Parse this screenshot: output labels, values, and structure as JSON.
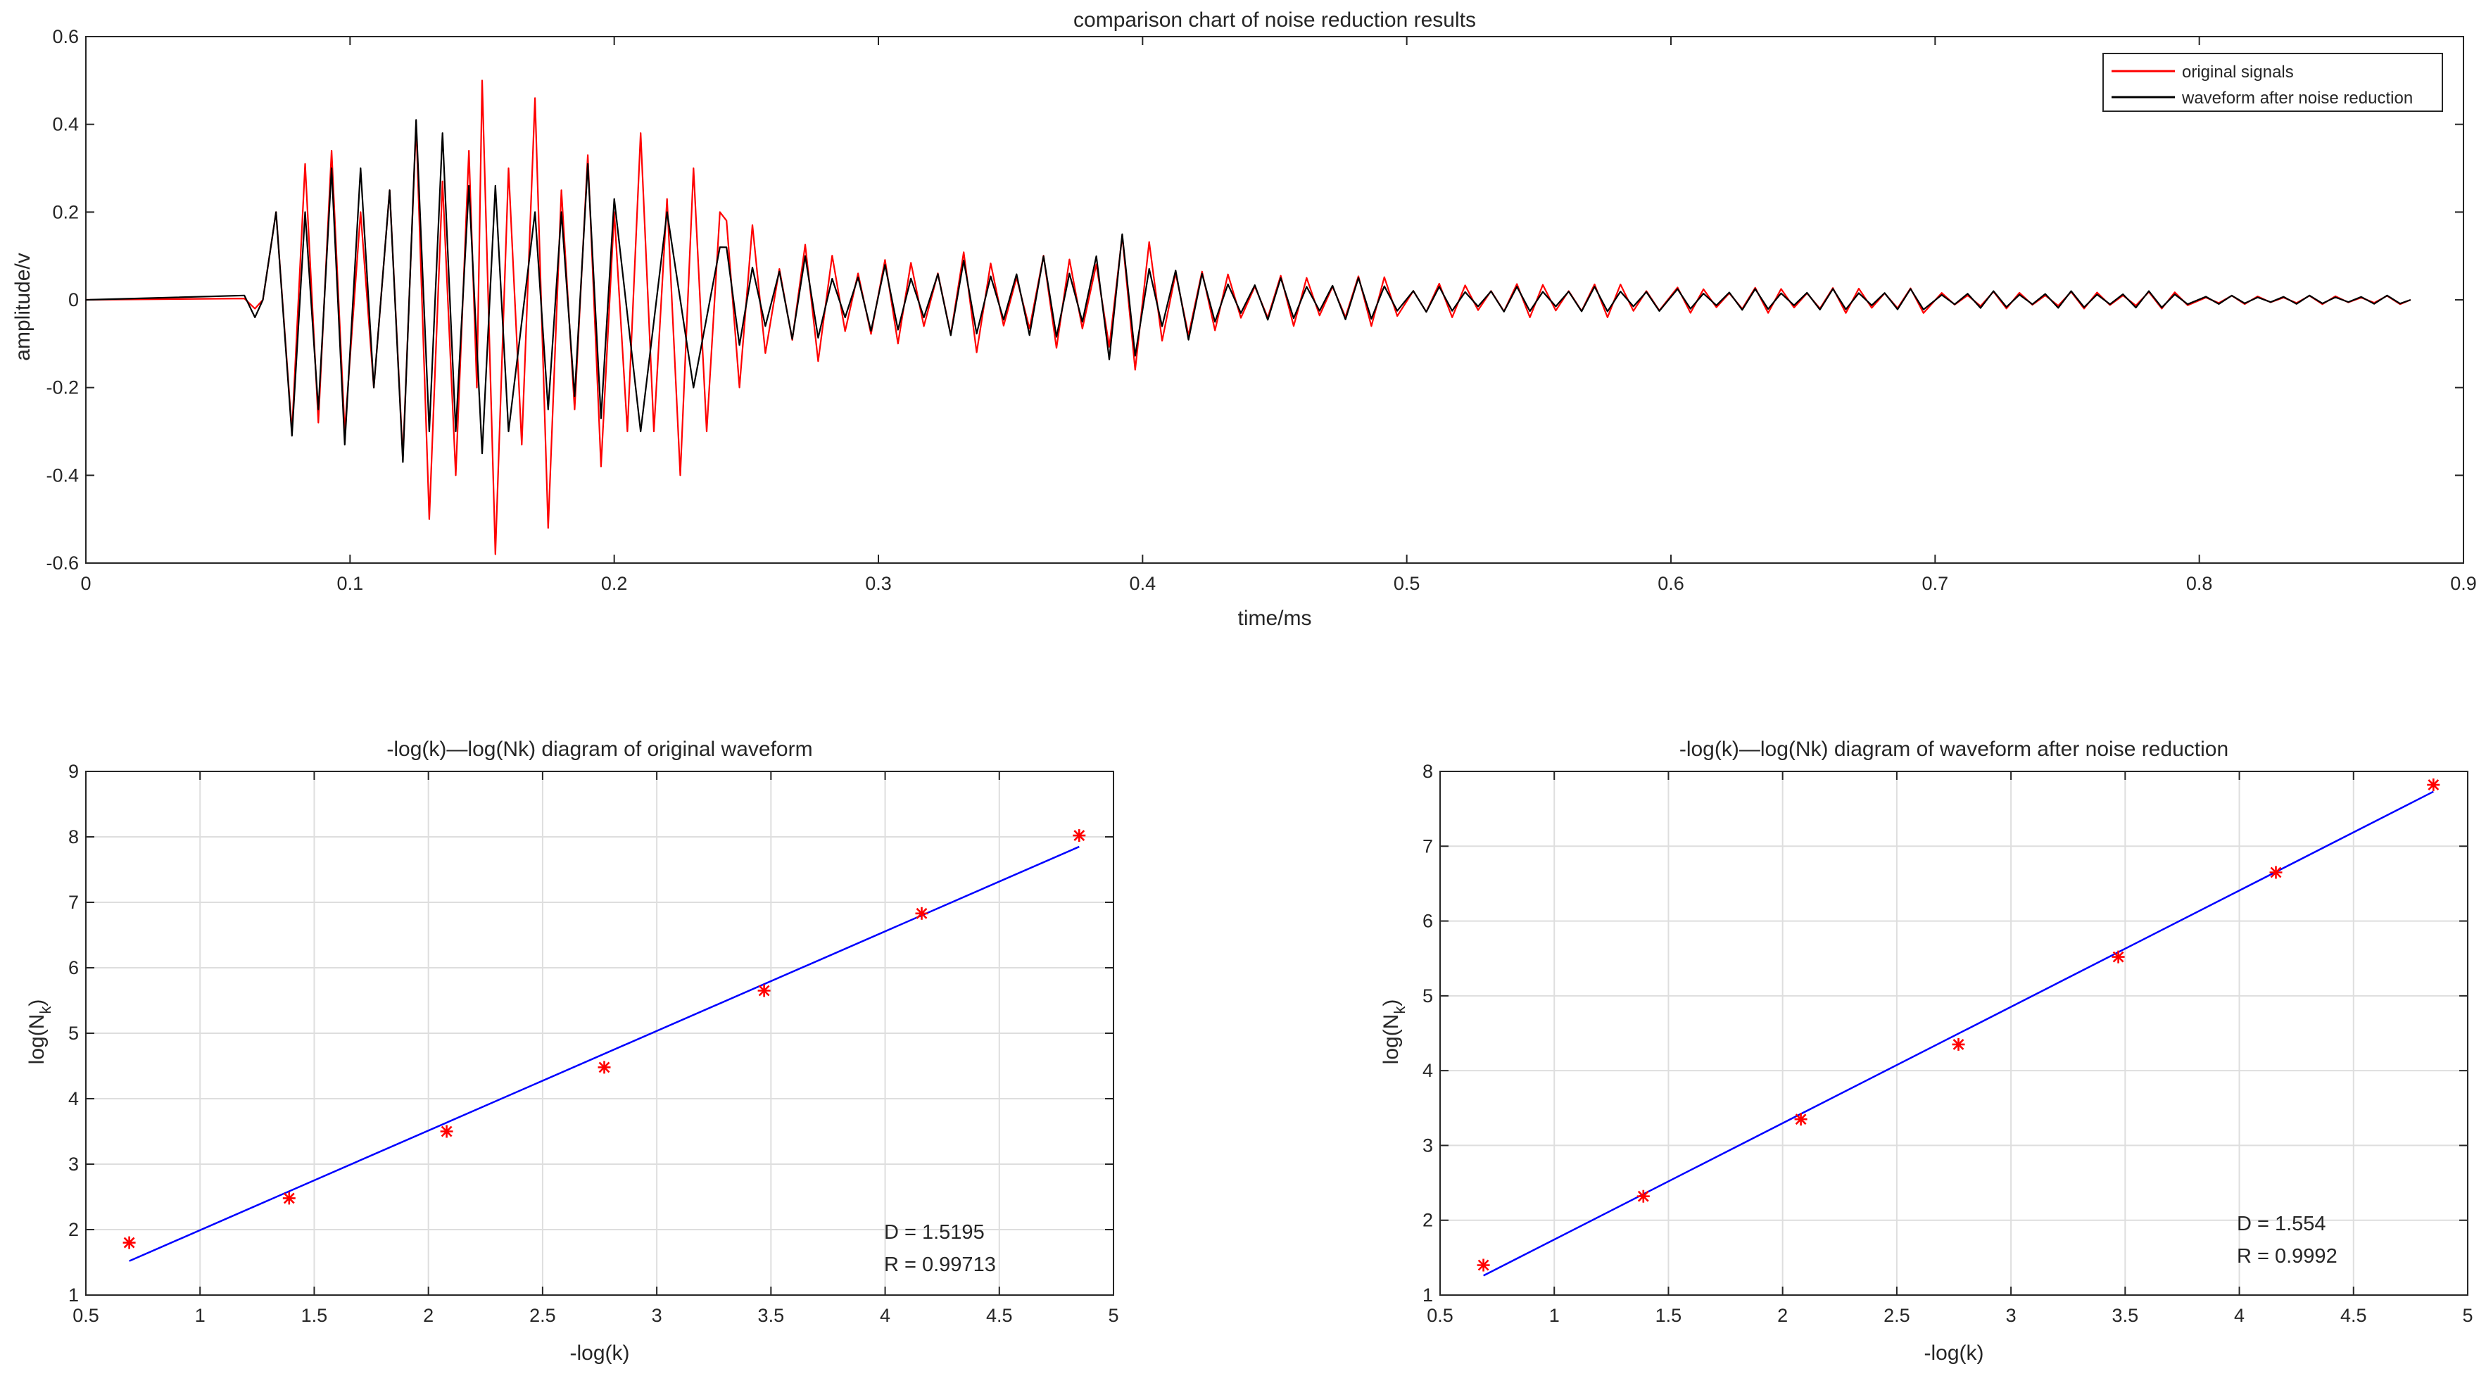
{
  "colors": {
    "original": "#ff0000",
    "denoised": "#000000",
    "fit_line": "#0000ff",
    "points": "#ff0000",
    "axis": "#262626",
    "grid": "#dedede"
  },
  "chart_data": [
    {
      "type": "line",
      "title": "comparison chart of noise reduction results",
      "xlabel": "time/ms",
      "ylabel": "amplitude/v",
      "xlim": [
        0,
        0.9
      ],
      "ylim": [
        -0.6,
        0.6
      ],
      "xticks": [
        "0",
        "0.1",
        "0.2",
        "0.3",
        "0.4",
        "0.5",
        "0.6",
        "0.7",
        "0.8",
        "0.9"
      ],
      "yticks": [
        "-0.6",
        "-0.4",
        "-0.2",
        "0",
        "0.2",
        "0.4",
        "0.6"
      ],
      "grid": false,
      "legend_position": "top-right",
      "signal_end": 0.88,
      "series": [
        {
          "name": "original signals",
          "peaks": [
            [
              0.072,
              0.2
            ],
            [
              0.078,
              -0.3
            ],
            [
              0.083,
              0.31
            ],
            [
              0.088,
              -0.28
            ],
            [
              0.093,
              0.34
            ],
            [
              0.098,
              -0.3
            ],
            [
              0.104,
              0.2
            ],
            [
              0.109,
              -0.2
            ],
            [
              0.115,
              0.25
            ],
            [
              0.12,
              -0.36
            ],
            [
              0.125,
              0.4
            ],
            [
              0.13,
              -0.5
            ],
            [
              0.135,
              0.27
            ],
            [
              0.14,
              -0.4
            ],
            [
              0.145,
              0.34
            ],
            [
              0.148,
              -0.2
            ],
            [
              0.15,
              0.5
            ],
            [
              0.155,
              -0.58
            ],
            [
              0.16,
              0.3
            ],
            [
              0.165,
              -0.33
            ],
            [
              0.17,
              0.46
            ],
            [
              0.175,
              -0.52
            ],
            [
              0.18,
              0.25
            ],
            [
              0.185,
              -0.25
            ],
            [
              0.19,
              0.33
            ],
            [
              0.195,
              -0.38
            ],
            [
              0.2,
              0.2
            ],
            [
              0.205,
              -0.3
            ],
            [
              0.21,
              0.38
            ],
            [
              0.215,
              -0.3
            ],
            [
              0.22,
              0.23
            ],
            [
              0.225,
              -0.4
            ],
            [
              0.23,
              0.3
            ],
            [
              0.235,
              -0.3
            ],
            [
              0.24,
              0.2
            ],
            [
              0.26,
              0.2
            ],
            [
              0.28,
              0.14
            ],
            [
              0.3,
              0.12
            ],
            [
              0.32,
              0.1
            ],
            [
              0.34,
              0.12
            ],
            [
              0.36,
              0.1
            ],
            [
              0.38,
              0.11
            ],
            [
              0.4,
              0.16
            ],
            [
              0.41,
              0.16
            ],
            [
              0.42,
              0.12
            ],
            [
              0.44,
              0.07
            ],
            [
              0.5,
              0.06
            ],
            [
              0.6,
              0.04
            ],
            [
              0.7,
              0.03
            ],
            [
              0.8,
              0.02
            ],
            [
              0.88,
              0.01
            ]
          ]
        },
        {
          "name": "waveform after noise reduction",
          "peaks": [
            [
              0.072,
              0.2
            ],
            [
              0.078,
              -0.31
            ],
            [
              0.083,
              0.2
            ],
            [
              0.088,
              -0.25
            ],
            [
              0.093,
              0.3
            ],
            [
              0.098,
              -0.33
            ],
            [
              0.104,
              0.3
            ],
            [
              0.109,
              -0.2
            ],
            [
              0.115,
              0.25
            ],
            [
              0.12,
              -0.37
            ],
            [
              0.125,
              0.41
            ],
            [
              0.13,
              -0.3
            ],
            [
              0.135,
              0.38
            ],
            [
              0.14,
              -0.3
            ],
            [
              0.145,
              0.26
            ],
            [
              0.15,
              -0.35
            ],
            [
              0.155,
              0.26
            ],
            [
              0.16,
              -0.3
            ],
            [
              0.17,
              0.2
            ],
            [
              0.175,
              -0.25
            ],
            [
              0.18,
              0.2
            ],
            [
              0.185,
              -0.22
            ],
            [
              0.19,
              0.31
            ],
            [
              0.195,
              -0.27
            ],
            [
              0.2,
              0.23
            ],
            [
              0.21,
              -0.3
            ],
            [
              0.22,
              0.2
            ],
            [
              0.23,
              -0.2
            ],
            [
              0.24,
              0.12
            ],
            [
              0.26,
              0.12
            ],
            [
              0.28,
              0.1
            ],
            [
              0.3,
              0.08
            ],
            [
              0.32,
              0.08
            ],
            [
              0.34,
              0.09
            ],
            [
              0.36,
              0.09
            ],
            [
              0.38,
              0.1
            ],
            [
              0.4,
              0.15
            ],
            [
              0.41,
              0.12
            ],
            [
              0.42,
              0.1
            ],
            [
              0.44,
              0.06
            ],
            [
              0.5,
              0.05
            ],
            [
              0.6,
              0.03
            ],
            [
              0.7,
              0.025
            ],
            [
              0.8,
              0.02
            ],
            [
              0.88,
              0.01
            ]
          ]
        }
      ]
    },
    {
      "type": "scatter",
      "title": "-log(k)—log(Nk) diagram of original waveform",
      "xlabel": "-log(k)",
      "ylabel_main": "log(N",
      "ylabel_sub": "k",
      "ylabel_close": ")",
      "xlim": [
        0.5,
        5
      ],
      "ylim": [
        1,
        9
      ],
      "xticks": [
        "0.5",
        "1",
        "1.5",
        "2",
        "2.5",
        "3",
        "3.5",
        "4",
        "4.5",
        "5"
      ],
      "yticks": [
        "1",
        "2",
        "3",
        "4",
        "5",
        "6",
        "7",
        "8",
        "9"
      ],
      "grid": true,
      "points": [
        [
          0.69,
          1.8
        ],
        [
          1.39,
          2.48
        ],
        [
          2.08,
          3.5
        ],
        [
          2.77,
          4.48
        ],
        [
          3.47,
          5.65
        ],
        [
          4.16,
          6.83
        ],
        [
          4.85,
          8.02
        ]
      ],
      "fit_line": [
        [
          0.69,
          1.52
        ],
        [
          4.85,
          7.85
        ]
      ],
      "annotations": [
        "D = 1.5195",
        "R = 0.99713"
      ]
    },
    {
      "type": "scatter",
      "title": "-log(k)—log(Nk) diagram of waveform after noise reduction",
      "xlabel": "-log(k)",
      "ylabel_main": "log(N",
      "ylabel_sub": "k",
      "ylabel_close": ")",
      "xlim": [
        0.5,
        5
      ],
      "ylim": [
        1,
        8
      ],
      "xticks": [
        "0.5",
        "1",
        "1.5",
        "2",
        "2.5",
        "3",
        "3.5",
        "4",
        "4.5",
        "5"
      ],
      "yticks": [
        "1",
        "2",
        "3",
        "4",
        "5",
        "6",
        "7",
        "8"
      ],
      "grid": true,
      "points": [
        [
          0.69,
          1.4
        ],
        [
          1.39,
          2.32
        ],
        [
          2.08,
          3.35
        ],
        [
          2.77,
          4.35
        ],
        [
          3.47,
          5.52
        ],
        [
          4.16,
          6.65
        ],
        [
          4.85,
          7.82
        ]
      ],
      "fit_line": [
        [
          0.69,
          1.26
        ],
        [
          4.85,
          7.73
        ]
      ],
      "annotations": [
        "D = 1.554",
        "R = 0.9992"
      ]
    }
  ]
}
